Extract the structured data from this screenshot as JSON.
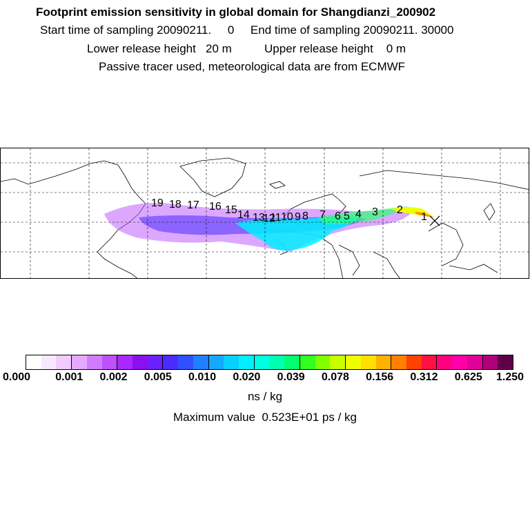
{
  "header": {
    "title": "Footprint emission sensitivity in global domain for Shangdianzi_200902",
    "line2": "Start time of sampling 20090211.     0     End time of sampling 20090211. 30000",
    "line3": "Lower release height   20 m          Upper release height    0 m",
    "line4": "Passive tracer used, meteorological data are from ECMWF"
  },
  "map": {
    "receptor_marker": "x-marker",
    "trajectory_labels": [
      "1",
      "2",
      "3",
      "4",
      "5",
      "6",
      "7",
      "8",
      "9",
      "10",
      "11",
      "12",
      "13",
      "14",
      "15",
      "16",
      "17",
      "18",
      "19"
    ]
  },
  "colorbar": {
    "colors": [
      "#ffffff",
      "#f8e8ff",
      "#f0ccff",
      "#e4a8ff",
      "#d07cff",
      "#bf50ff",
      "#a828ff",
      "#8a10f0",
      "#6a20ff",
      "#4a2cff",
      "#3050ff",
      "#2080ff",
      "#14a8ff",
      "#08d0ff",
      "#00f0ff",
      "#00ffe0",
      "#00ffb0",
      "#00ff70",
      "#30ff20",
      "#80ff00",
      "#c8ff00",
      "#f0ff00",
      "#ffe000",
      "#ffb000",
      "#ff8000",
      "#ff4000",
      "#ff1040",
      "#ff0080",
      "#ff00a8",
      "#e0009a",
      "#b0007c",
      "#60004a"
    ],
    "tick_labels": [
      "0.000",
      "0.001",
      "0.002",
      "0.005",
      "0.010",
      "0.020",
      "0.039",
      "0.078",
      "0.156",
      "0.312",
      "0.625",
      "1.250"
    ],
    "units": "ns / kg",
    "max_value": "Maximum value  0.523E+01 ps / kg"
  }
}
